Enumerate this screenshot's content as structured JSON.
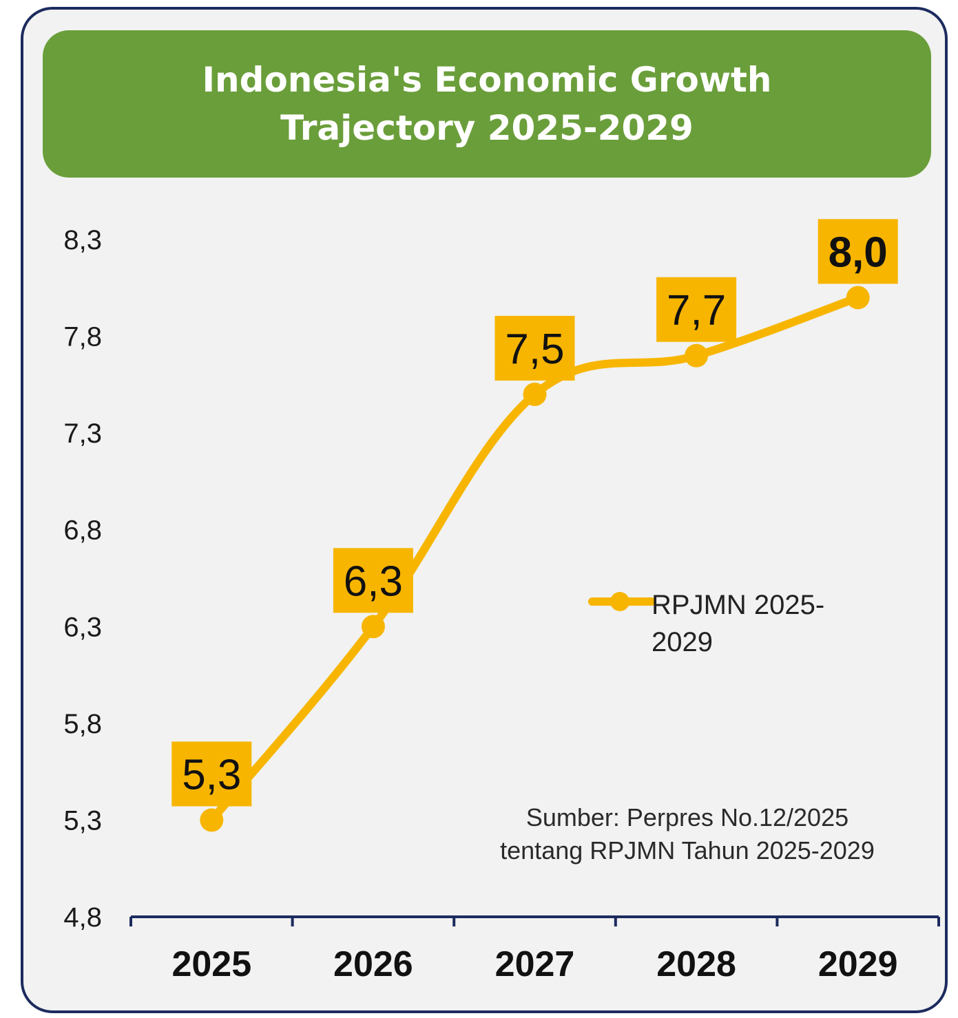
{
  "header": {
    "title": "Indonesia's Economic Growth Trajectory 2025-2029"
  },
  "chart_data": {
    "type": "line",
    "title": "Indonesia's Economic Growth Trajectory 2025-2029",
    "xlabel": "",
    "ylabel": "",
    "categories": [
      "2025",
      "2026",
      "2027",
      "2028",
      "2029"
    ],
    "series": [
      {
        "name": "RPJMN 2025-2029",
        "values": [
          5.3,
          6.3,
          7.5,
          7.7,
          8.0
        ],
        "data_labels": [
          "5,3",
          "6,3",
          "7,5",
          "7,7",
          "8,0"
        ]
      }
    ],
    "ylim": [
      4.8,
      8.3
    ],
    "yticks": [
      {
        "value": 4.8,
        "label": "4,8"
      },
      {
        "value": 5.3,
        "label": "5,3"
      },
      {
        "value": 5.8,
        "label": "5,8"
      },
      {
        "value": 6.3,
        "label": "6,3"
      },
      {
        "value": 6.8,
        "label": "6,8"
      },
      {
        "value": 7.3,
        "label": "7,3"
      },
      {
        "value": 7.8,
        "label": "7,8"
      },
      {
        "value": 8.3,
        "label": "8,3"
      }
    ],
    "grid": false,
    "legend": {
      "position": "right",
      "lines": [
        "RPJMN 2025-",
        "2029"
      ]
    },
    "annotation": {
      "lines": [
        "Sumber: Perpres No.12/2025",
        "tentang RPJMN Tahun 2025-2029"
      ]
    },
    "colors": {
      "line": "#f7b500",
      "label_box": "#f7b500",
      "axis": "#1c2b5e",
      "banner": "#6a9e3a",
      "border": "#1c2b5e"
    }
  }
}
